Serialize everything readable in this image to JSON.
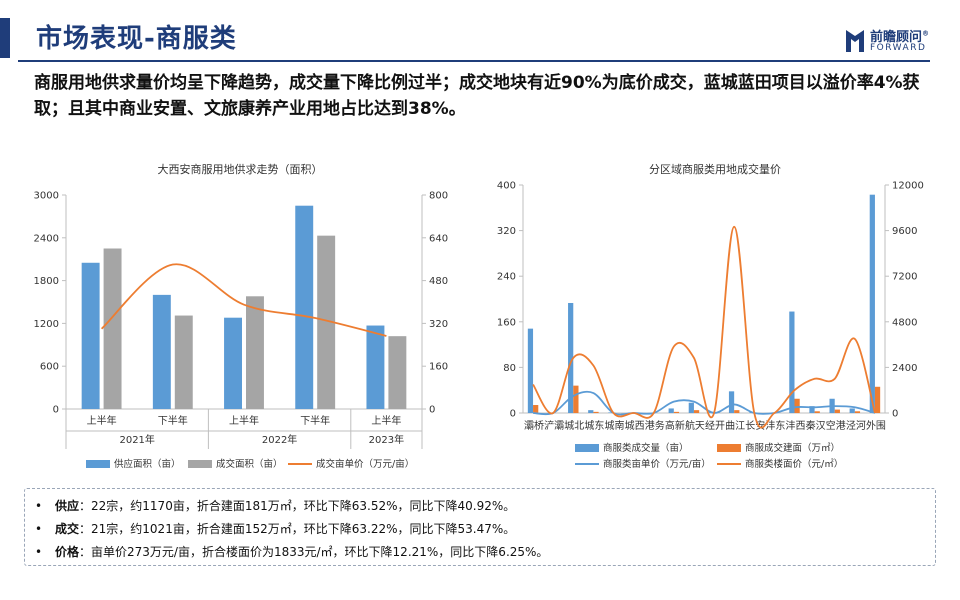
{
  "header": {
    "title": "市场表现-商服类",
    "logo_cn": "前瞻顾问",
    "logo_en": "FORWARD",
    "logo_mark": "®",
    "accent_color": "#1f3d7a"
  },
  "headline": "商服用地供求量价均呈下降趋势，成交量下降比例过半；成交地块有近90%为底价成交，蓝城蓝田项目以溢价率4%获取；且其中商业安置、文旅康养产业用地占比达到38%。",
  "notes": [
    {
      "label": "供应",
      "text": "：22宗，约1170亩，折合建面181万㎡，环比下降63.52%，同比下降40.92%。"
    },
    {
      "label": "成交",
      "text": "：21宗，约1021亩，折合建面152万㎡，环比下降63.22%，同比下降53.47%。"
    },
    {
      "label": "价格",
      "text": "：亩单价273万元/亩，折合楼面价为1833元/㎡，环比下降12.21%，同比下降6.25%。"
    }
  ],
  "chart_data": [
    {
      "type": "bar",
      "title": "大西安商服用地供求走势（面积）",
      "categories": [
        "上半年",
        "下半年",
        "上半年",
        "下半年",
        "上半年"
      ],
      "groups": [
        {
          "label": "2021年",
          "span": 2
        },
        {
          "label": "2022年",
          "span": 2
        },
        {
          "label": "2023年",
          "span": 1
        }
      ],
      "series": [
        {
          "name": "供应面积（亩）",
          "kind": "bar",
          "axis": "left",
          "color": "#5b9bd5",
          "values": [
            2050,
            1600,
            1280,
            2850,
            1170
          ]
        },
        {
          "name": "成交面积（亩）",
          "kind": "bar",
          "axis": "left",
          "color": "#a5a5a5",
          "values": [
            2250,
            1310,
            1580,
            2430,
            1021
          ]
        },
        {
          "name": "成交亩单价（万元/亩）",
          "kind": "line",
          "axis": "right",
          "color": "#ed7d31",
          "values": [
            300,
            540,
            390,
            340,
            273
          ]
        }
      ],
      "ylim": [
        0,
        3000
      ],
      "yticks": [
        "0",
        "600",
        "1200",
        "1800",
        "2400",
        "3000"
      ],
      "y2lim": [
        0,
        800
      ],
      "y2ticks": [
        "0",
        "160",
        "320",
        "480",
        "640",
        "800"
      ],
      "legend": "bottom",
      "grid": false
    },
    {
      "type": "bar",
      "title": "分区域商服类用地成交量价",
      "categories": [
        "灞桥",
        "浐灞",
        "城北",
        "城东",
        "城南",
        "城西",
        "港务",
        "高新",
        "航天",
        "经开",
        "曲江",
        "长安",
        "沣东",
        "沣西",
        "秦汉",
        "空港",
        "泾河",
        "外围"
      ],
      "series": [
        {
          "name": "商服类成交量（亩）",
          "kind": "bar",
          "axis": "left",
          "color": "#5b9bd5",
          "values": [
            148,
            0,
            193,
            5,
            1,
            1,
            0,
            8,
            18,
            2,
            38,
            1,
            0,
            178,
            12,
            25,
            8,
            383
          ]
        },
        {
          "name": "商服成交建面（万㎡）",
          "kind": "bar",
          "axis": "left",
          "color": "#ed7d31",
          "values": [
            14,
            0,
            48,
            2,
            0,
            0,
            0,
            2,
            5,
            1,
            5,
            0,
            0,
            25,
            3,
            6,
            3,
            46
          ]
        },
        {
          "name": "商服类亩单价（万元/亩）",
          "kind": "line",
          "axis": "left",
          "color": "#5b9bd5",
          "values": [
            0,
            0,
            30,
            35,
            0,
            0,
            0,
            20,
            20,
            0,
            15,
            0,
            0,
            10,
            10,
            12,
            10,
            0
          ]
        },
        {
          "name": "商服类楼面价（元/㎡）",
          "kind": "line",
          "axis": "right",
          "color": "#ed7d31",
          "values": [
            1500,
            0,
            2900,
            2500,
            0,
            0,
            0,
            3500,
            2900,
            0,
            9800,
            0,
            0,
            1200,
            1800,
            1800,
            3900,
            0
          ]
        }
      ],
      "ylim": [
        0,
        400
      ],
      "yticks": [
        "0",
        "80",
        "160",
        "240",
        "320",
        "400"
      ],
      "y2lim": [
        0,
        12000
      ],
      "y2ticks": [
        "0",
        "2400",
        "4800",
        "7200",
        "9600",
        "12000"
      ],
      "legend": "bottom",
      "grid": false
    }
  ]
}
